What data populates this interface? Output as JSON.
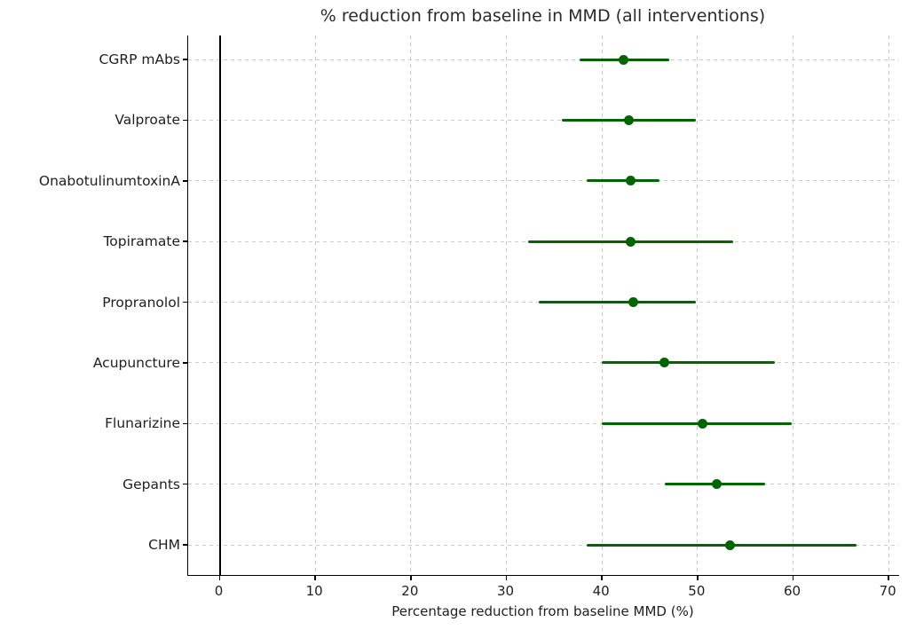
{
  "chart_data": {
    "type": "scatter",
    "subtype": "horizontal-dot-plot-with-error-bars",
    "title": "% reduction from baseline in MMD (all interventions)",
    "xlabel": "Percentage reduction from baseline MMD (%)",
    "ylabel": "",
    "categories": [
      "CGRP mAbs",
      "Valproate",
      "OnabotulinumtoxinA",
      "Topiramate",
      "Propranolol",
      "Acupuncture",
      "Flunarizine",
      "Gepants",
      "CHM"
    ],
    "series": [
      {
        "name": "% reduction from baseline in MMD (point estimate with CI)",
        "values": [
          42.3,
          42.8,
          43.0,
          43.0,
          43.3,
          46.5,
          50.5,
          52.0,
          53.4
        ],
        "ci_low": [
          37.7,
          35.8,
          38.4,
          32.3,
          33.4,
          40.0,
          40.0,
          46.6,
          38.4
        ],
        "ci_high": [
          47.0,
          49.8,
          46.0,
          53.7,
          49.8,
          58.1,
          59.9,
          57.1,
          66.6
        ]
      }
    ],
    "x_ticks": [
      0,
      10,
      20,
      30,
      40,
      50,
      60,
      70
    ],
    "xlim": [
      -3.3,
      71.1
    ],
    "grid": true,
    "legend_position": "none",
    "reference_line_x": 0,
    "colors": {
      "marker": "#006400",
      "error_bar": "#006400",
      "grid": "#cbcbcb",
      "axis": "#000000",
      "text": "#1f1f1f"
    }
  }
}
